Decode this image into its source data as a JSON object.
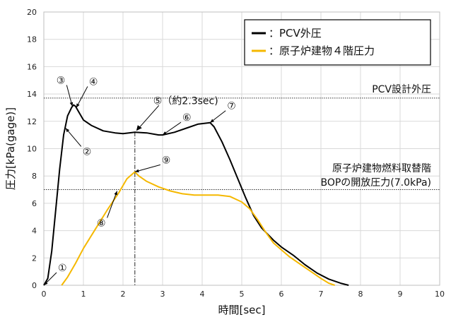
{
  "chart_data": {
    "type": "line",
    "xlabel": "時間[sec]",
    "ylabel": "圧力[kPa(gage)]",
    "xlim": [
      0,
      10
    ],
    "ylim": [
      0,
      20
    ],
    "xticks": [
      "0",
      "1",
      "2",
      "3",
      "4",
      "5",
      "6",
      "7",
      "8",
      "9",
      "10"
    ],
    "yticks": [
      "0",
      "2",
      "4",
      "6",
      "8",
      "10",
      "12",
      "14",
      "16",
      "18",
      "20"
    ],
    "grid": true,
    "legend_position": "top-right",
    "series": [
      {
        "name": "：PCV外圧",
        "color": "#000000",
        "x": [
          0.0,
          0.1,
          0.2,
          0.3,
          0.4,
          0.5,
          0.6,
          0.7,
          0.75,
          0.8,
          0.9,
          1.0,
          1.2,
          1.5,
          1.8,
          2.0,
          2.3,
          2.6,
          2.9,
          3.0,
          3.3,
          3.6,
          3.9,
          4.2,
          4.3,
          4.5,
          4.7,
          4.9,
          5.1,
          5.3,
          5.5,
          5.8,
          6.0,
          6.3,
          6.6,
          6.9,
          7.2,
          7.5,
          7.7
        ],
        "y": [
          0.0,
          0.5,
          2.5,
          5.5,
          8.5,
          11.0,
          12.4,
          13.0,
          13.2,
          13.1,
          12.6,
          12.1,
          11.7,
          11.3,
          11.15,
          11.1,
          11.2,
          11.15,
          11.0,
          11.0,
          11.2,
          11.5,
          11.8,
          11.9,
          11.6,
          10.5,
          9.2,
          7.8,
          6.4,
          5.1,
          4.2,
          3.3,
          2.8,
          2.2,
          1.5,
          0.9,
          0.45,
          0.15,
          0.0
        ]
      },
      {
        "name": "：原子炉建物４階圧力",
        "color": "#f5b800",
        "x": [
          0.45,
          0.6,
          0.8,
          1.0,
          1.3,
          1.6,
          1.9,
          2.1,
          2.3,
          2.4,
          2.6,
          2.9,
          3.2,
          3.5,
          3.8,
          4.1,
          4.4,
          4.7,
          5.0,
          5.2,
          5.4,
          5.6,
          5.8,
          6.0,
          6.2,
          6.5,
          6.8,
          7.0,
          7.2,
          7.35
        ],
        "y": [
          0.0,
          0.6,
          1.6,
          2.7,
          4.1,
          5.5,
          6.8,
          7.8,
          8.3,
          8.0,
          7.6,
          7.2,
          6.9,
          6.7,
          6.6,
          6.6,
          6.6,
          6.5,
          6.1,
          5.6,
          4.8,
          3.9,
          3.1,
          2.6,
          2.1,
          1.5,
          0.9,
          0.5,
          0.15,
          0.0
        ]
      }
    ],
    "reference_lines": [
      {
        "y": 13.7,
        "label": "PCV設計外圧"
      },
      {
        "y": 7.0,
        "label_line1": "原子炉建物燃料取替階",
        "label_line2": "BOPの開放圧力(7.0kPa)"
      }
    ],
    "vertical_marker": {
      "x": 2.3,
      "label": "⑤（約2.3sec)"
    },
    "annotations": [
      {
        "text": "①",
        "x": 0.0,
        "y": 0.0
      },
      {
        "text": "②",
        "x": 0.55,
        "y": 11.5
      },
      {
        "text": "③",
        "x": 0.72,
        "y": 13.1
      },
      {
        "text": "④",
        "x": 0.82,
        "y": 13.0
      },
      {
        "text": "⑥",
        "x": 3.0,
        "y": 11.0
      },
      {
        "text": "⑦",
        "x": 4.2,
        "y": 11.9
      },
      {
        "text": "⑧",
        "x": 1.85,
        "y": 6.9
      },
      {
        "text": "⑨",
        "x": 2.3,
        "y": 8.3
      }
    ]
  }
}
